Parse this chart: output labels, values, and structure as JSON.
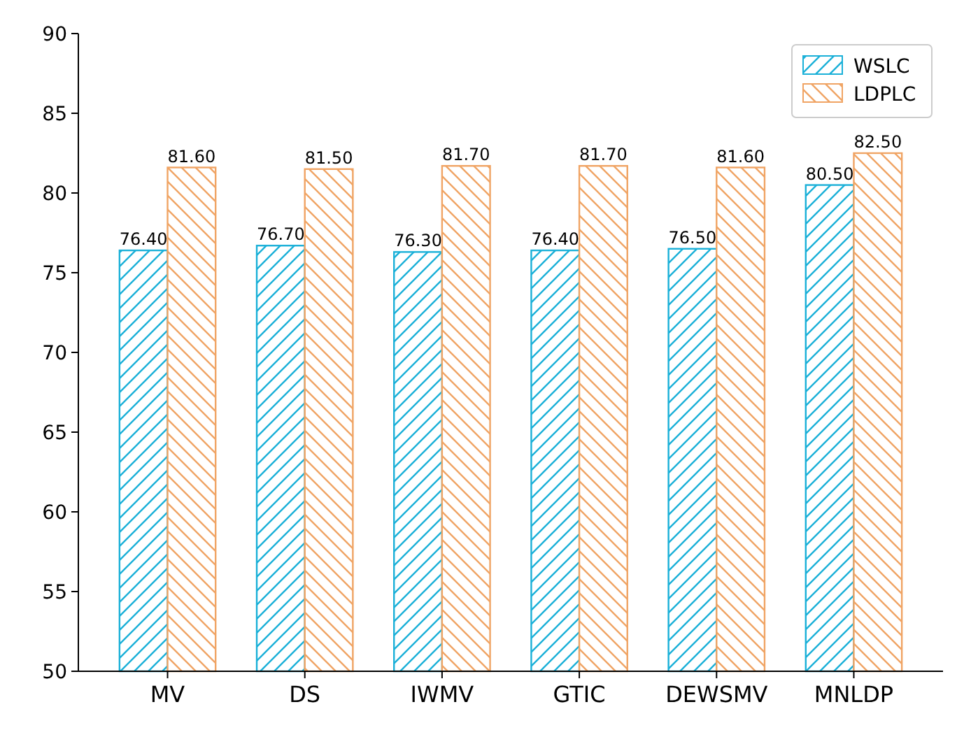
{
  "chart_data": {
    "type": "bar",
    "categories": [
      "MV",
      "DS",
      "IWMV",
      "GTIC",
      "DEWSMV",
      "MNLDP"
    ],
    "series": [
      {
        "name": "WSLC",
        "color": "#1ab0d8",
        "values": [
          76.4,
          76.7,
          76.3,
          76.4,
          76.5,
          80.5
        ],
        "value_labels": [
          "76.40",
          "76.70",
          "76.30",
          "76.40",
          "76.50",
          "80.50"
        ]
      },
      {
        "name": "LDPLC",
        "color": "#f0a464",
        "values": [
          81.6,
          81.5,
          81.7,
          81.7,
          81.6,
          82.5
        ],
        "value_labels": [
          "81.60",
          "81.50",
          "81.70",
          "81.70",
          "81.60",
          "82.50"
        ]
      }
    ],
    "ylim": [
      50,
      90
    ],
    "yticks": [
      50,
      55,
      60,
      65,
      70,
      75,
      80,
      85,
      90
    ],
    "grid": false,
    "legend": "top right"
  }
}
